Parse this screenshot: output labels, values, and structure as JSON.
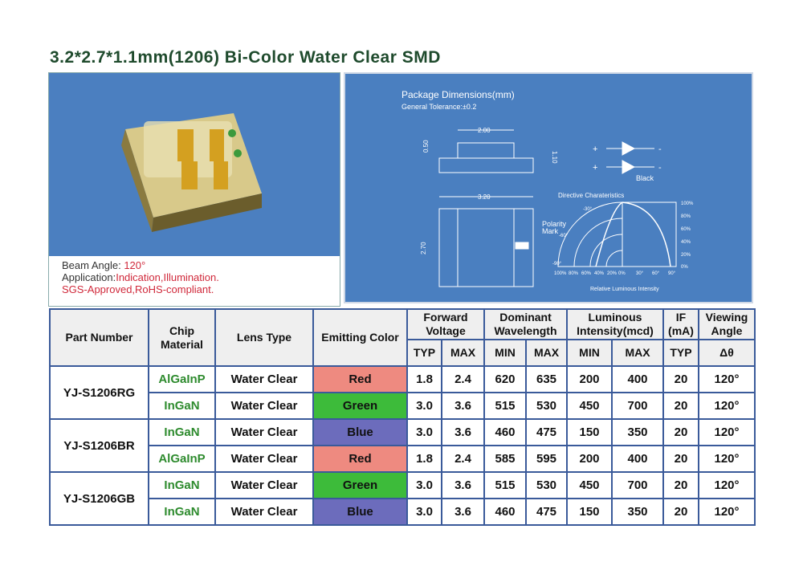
{
  "title": "3.2*2.7*1.1mm(1206) Bi-Color Water Clear SMD",
  "caption": {
    "beam_label": "Beam Angle: ",
    "beam_value": "120°",
    "app_label": "Application:",
    "app_value": "Indication,Illumination.",
    "cert": "SGS-Approved,RoHS-compliant."
  },
  "diagram": {
    "title": "Package Dimensions(mm)",
    "tolerance": "General Tolerance:±0.2",
    "dim_w_top": "2.00",
    "dim_h_small": "0.50",
    "dim_h": "1.10",
    "dim_w": "3.20",
    "dim_l": "2.70",
    "polarity": "Polarity",
    "mark": "Mark",
    "black": "Black",
    "plus": "+",
    "minus": "-",
    "directive": "Directive Charateristics",
    "axis_label": "Relative Luminous Intensity",
    "right_ticks": [
      "100%",
      "80%",
      "60%",
      "40%",
      "20%",
      "0%"
    ],
    "bottom_ticks": [
      "100%",
      "80%",
      "60%",
      "40%",
      "20%",
      "0%",
      "30°",
      "60°",
      "90°"
    ],
    "angle_labels": [
      "-30°",
      "-60°",
      "-90°"
    ]
  },
  "colors": {
    "red": "#ee8a80",
    "green": "#3dbb3a",
    "blue": "#6c6cbc",
    "border": "#3a5a9a",
    "chip_text": "#2e8b2e"
  },
  "table": {
    "headers": {
      "part": "Part Number",
      "chip": "Chip Material",
      "lens": "Lens Type",
      "color": "Emitting Color",
      "vf": "Forward Voltage",
      "wl": "Dominant Wavelength",
      "iv": "Luminous Intensity(mcd)",
      "if": "IF (mA)",
      "angle": "Viewing Angle",
      "typ": "TYP",
      "max": "MAX",
      "min": "MIN",
      "theta": "Δθ"
    },
    "groups": [
      {
        "part": "YJ-S1206RG",
        "rows": [
          {
            "chip": "AlGaInP",
            "lens": "Water Clear",
            "color": "Red",
            "vf_typ": "1.8",
            "vf_max": "2.4",
            "wl_min": "620",
            "wl_max": "635",
            "iv_min": "200",
            "iv_max": "400",
            "if": "20",
            "angle": "120°"
          },
          {
            "chip": "InGaN",
            "lens": "Water Clear",
            "color": "Green",
            "vf_typ": "3.0",
            "vf_max": "3.6",
            "wl_min": "515",
            "wl_max": "530",
            "iv_min": "450",
            "iv_max": "700",
            "if": "20",
            "angle": "120°"
          }
        ]
      },
      {
        "part": "YJ-S1206BR",
        "rows": [
          {
            "chip": "InGaN",
            "lens": "Water Clear",
            "color": "Blue",
            "vf_typ": "3.0",
            "vf_max": "3.6",
            "wl_min": "460",
            "wl_max": "475",
            "iv_min": "150",
            "iv_max": "350",
            "if": "20",
            "angle": "120°"
          },
          {
            "chip": "AlGaInP",
            "lens": "Water Clear",
            "color": "Red",
            "vf_typ": "1.8",
            "vf_max": "2.4",
            "wl_min": "585",
            "wl_max": "595",
            "iv_min": "200",
            "iv_max": "400",
            "if": "20",
            "angle": "120°"
          }
        ]
      },
      {
        "part": "YJ-S1206GB",
        "rows": [
          {
            "chip": "InGaN",
            "lens": "Water Clear",
            "color": "Green",
            "vf_typ": "3.0",
            "vf_max": "3.6",
            "wl_min": "515",
            "wl_max": "530",
            "iv_min": "450",
            "iv_max": "700",
            "if": "20",
            "angle": "120°"
          },
          {
            "chip": "InGaN",
            "lens": "Water Clear",
            "color": "Blue",
            "vf_typ": "3.0",
            "vf_max": "3.6",
            "wl_min": "460",
            "wl_max": "475",
            "iv_min": "150",
            "iv_max": "350",
            "if": "20",
            "angle": "120°"
          }
        ]
      }
    ]
  }
}
